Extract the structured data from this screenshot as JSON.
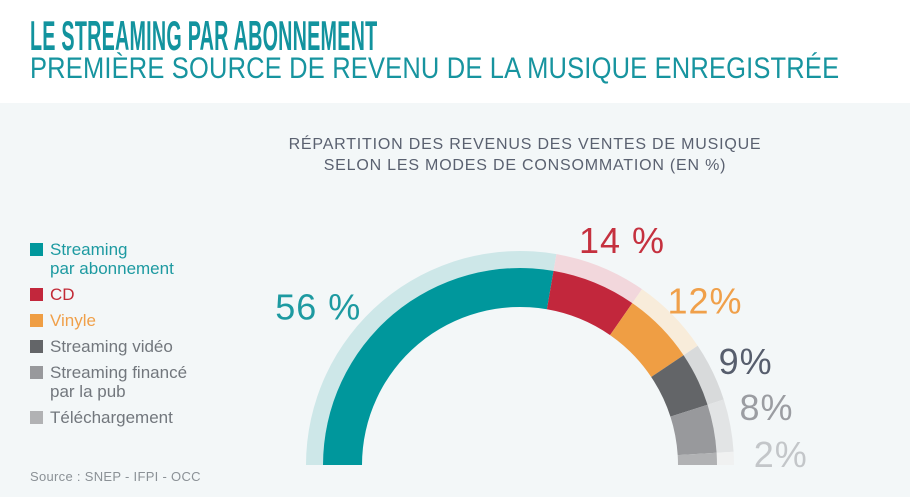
{
  "header": {
    "title": "LE STREAMING PAR ABONNEMENT",
    "subtitle": "PREMIÈRE SOURCE DE REVENU DE LA MUSIQUE ENREGISTRÉE"
  },
  "chart": {
    "title_line1": "RÉPARTITION DES REVENUS DES VENTES DE MUSIQUE",
    "title_line2": "SELON LES MODES DE CONSOMMATION (EN %)"
  },
  "chart_data": {
    "type": "pie",
    "shape": "semi-donut",
    "title": "RÉPARTITION DES REVENUS DES VENTES DE MUSIQUE SELON LES MODES DE CONSOMMATION (EN %)",
    "unit": "%",
    "legend_position": "left",
    "categories": [
      "Streaming par abonnement",
      "CD",
      "Vinyle",
      "Streaming vidéo",
      "Streaming financé par la pub",
      "Téléchargement"
    ],
    "values": [
      56,
      14,
      12,
      9,
      8,
      2
    ],
    "segments": [
      {
        "slug": "streaming-abonnement",
        "label": "Streaming par abonnement",
        "legend_lines": [
          "Streaming",
          "par abonnement"
        ],
        "value": 56,
        "display": "56 %",
        "color": "#00979c",
        "halo_color": "#cde7e8",
        "label_color": "#1d9aa1",
        "legend_text_color": "#1d9aa1"
      },
      {
        "slug": "cd",
        "label": "CD",
        "legend_lines": [
          "CD"
        ],
        "value": 14,
        "display": "14 %",
        "color": "#c2273c",
        "halo_color": "#f2d7dc",
        "label_color": "#c5313f",
        "legend_text_color": "#c22a36"
      },
      {
        "slug": "vinyle",
        "label": "Vinyle",
        "legend_lines": [
          "Vinyle"
        ],
        "value": 12,
        "display": "12%",
        "color": "#ef9e44",
        "halo_color": "#f8ecda",
        "label_color": "#f0a04a",
        "legend_text_color": "#f0a04a"
      },
      {
        "slug": "streaming-video",
        "label": "Streaming vidéo",
        "legend_lines": [
          "Streaming vidéo"
        ],
        "value": 9,
        "display": "9%",
        "color": "#636568",
        "halo_color": "#d8dadb",
        "label_color": "#575e6d",
        "legend_text_color": "#72777d"
      },
      {
        "slug": "streaming-pub",
        "label": "Streaming financé par la pub",
        "legend_lines": [
          "Streaming financé",
          "par la pub"
        ],
        "value": 8,
        "display": "8%",
        "color": "#98999c",
        "halo_color": "#e2e4e5",
        "label_color": "#9b9da2",
        "legend_text_color": "#72777d"
      },
      {
        "slug": "telechargement",
        "label": "Téléchargement",
        "legend_lines": [
          "Téléchargement"
        ],
        "value": 2,
        "display": "2%",
        "color": "#b1b2b4",
        "halo_color": "#f0f1f1",
        "label_color": "#c3c6c9",
        "legend_text_color": "#72777d"
      }
    ],
    "source": "Source : SNEP - IFPI - OCC"
  },
  "source": {
    "text": "Source : SNEP - IFPI - OCC"
  },
  "colors": {
    "heading_teal": "#12939e",
    "chart_title_gray": "#5a6170",
    "chart_background": "#f3f7f8",
    "source_gray": "#8b9196"
  }
}
